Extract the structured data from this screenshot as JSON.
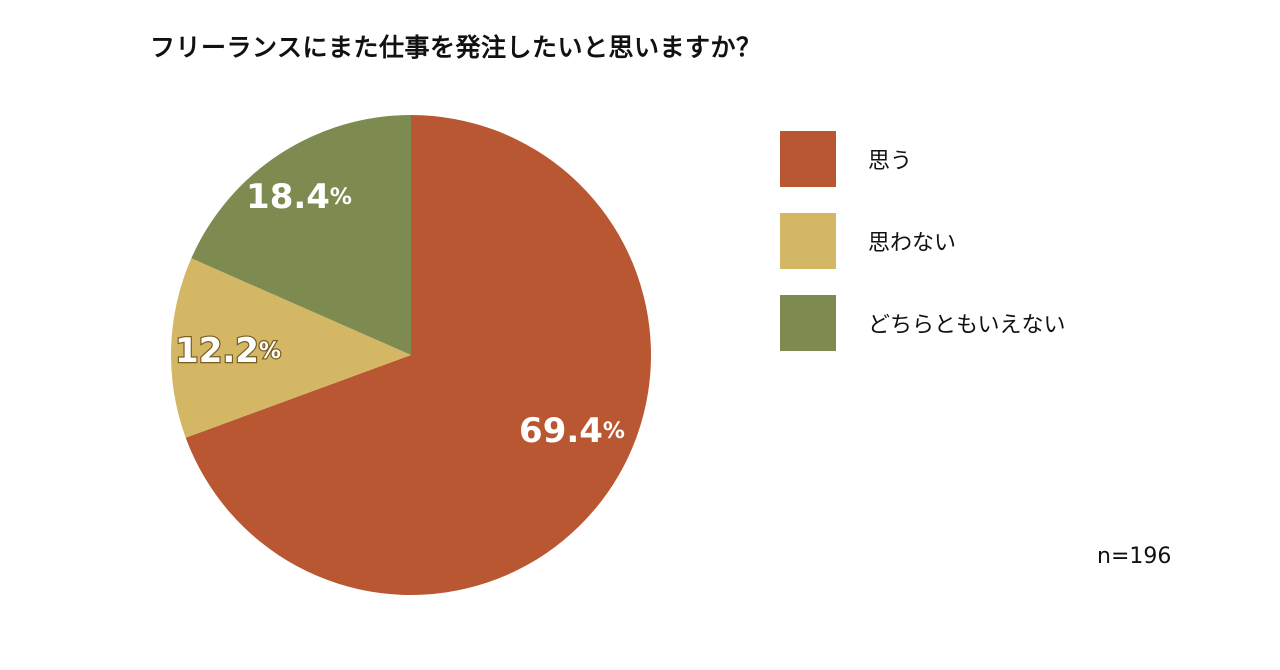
{
  "chart_data": {
    "type": "pie",
    "title": "フリーランスにまた仕事を発注したいと思いますか？",
    "categories": [
      "思う",
      "思わない",
      "どちらともいえない"
    ],
    "values": [
      69.4,
      12.2,
      18.4
    ],
    "data_labels": [
      {
        "number": "69.4",
        "unit": "%"
      },
      {
        "number": "12.2",
        "unit": "%"
      },
      {
        "number": "18.4",
        "unit": "%"
      }
    ],
    "colors": [
      "#b85731",
      "#d4b765",
      "#7d8a50"
    ],
    "start_angle": "12 o'clock",
    "direction": "clockwise",
    "legend_position": "right",
    "sample_size": "n=196"
  }
}
